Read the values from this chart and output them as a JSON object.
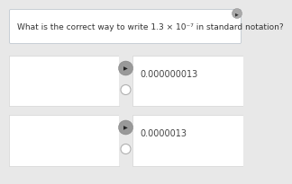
{
  "question": "What is the correct way to write 1.3 × 10⁻⁷ in standard notation?",
  "question_fontsize": 6.5,
  "bg_color": "#e8e8e8",
  "white_color": "#ffffff",
  "option1_text": "0.000000013",
  "option2_text": "0.0000013",
  "option_fontsize": 7.0,
  "border_color": "#cccccc",
  "header_bg": "#ffffff",
  "speaker_bg": "#999999",
  "corner_circle_color": "#aaaaaa",
  "radio_edge": "#b0b0b0",
  "text_color": "#444444",
  "header_border": "#c0c8d0"
}
